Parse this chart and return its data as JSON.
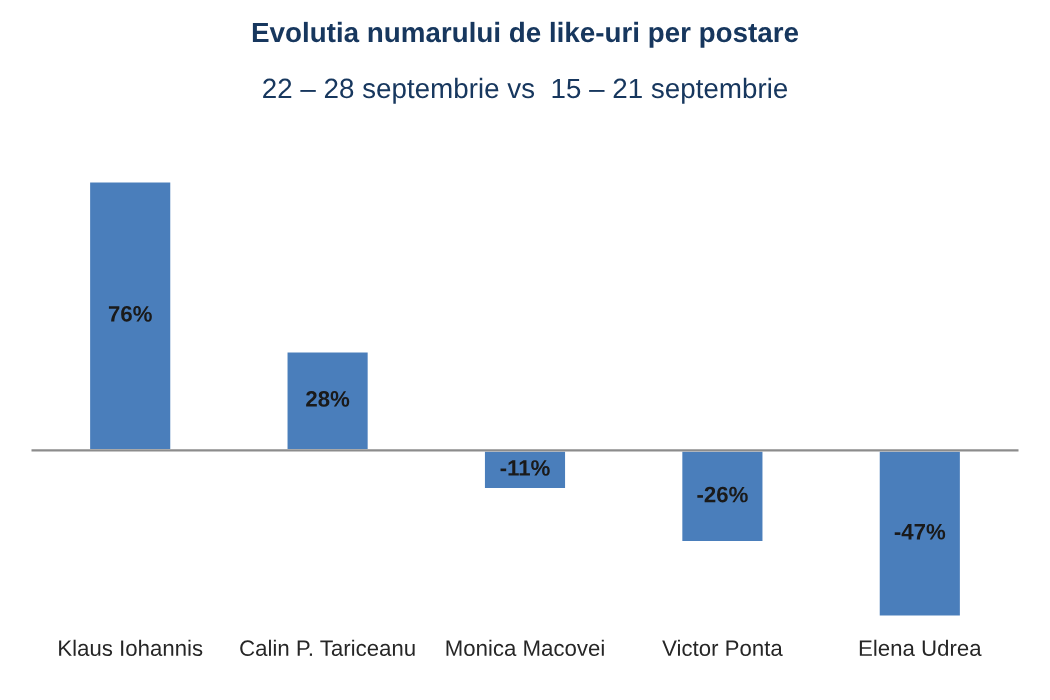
{
  "chart_data": {
    "type": "bar",
    "title": "Evolutia numarului de like-uri per postare",
    "subtitle": "22 – 28 septembrie vs  15 – 21 septembrie",
    "categories": [
      "Klaus Iohannis",
      "Calin P. Tariceanu",
      "Monica Macovei",
      "Victor Ponta",
      "Elena Udrea"
    ],
    "values": [
      76,
      28,
      -11,
      -26,
      -47
    ],
    "value_labels": [
      "76%",
      "28%",
      "-11%",
      "-26%",
      "-47%"
    ],
    "color": "#4a7ebb",
    "grid": false
  }
}
